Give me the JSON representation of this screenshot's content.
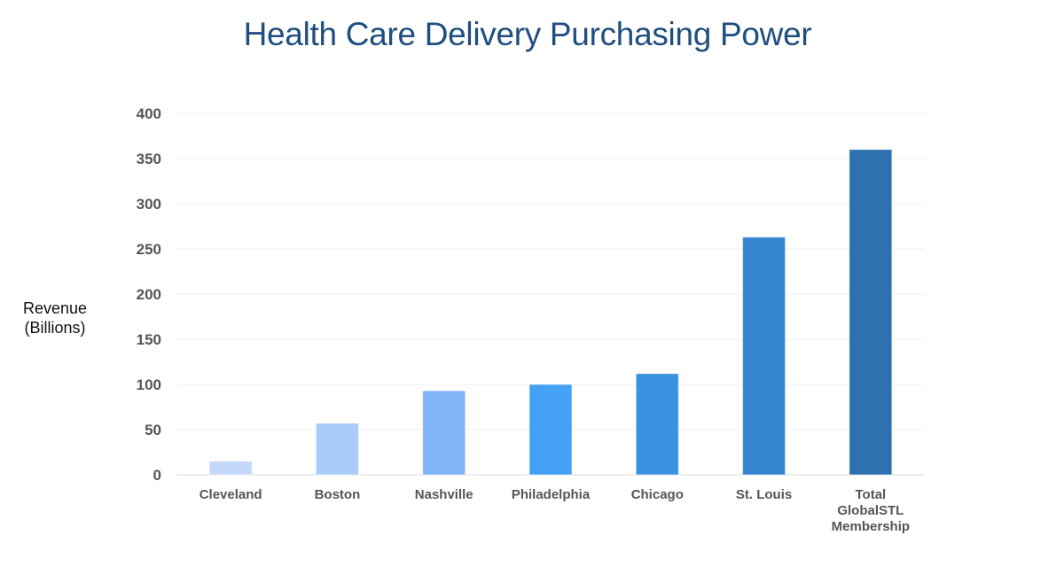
{
  "chart_data": {
    "type": "bar",
    "title": "Health Care Delivery Purchasing Power",
    "xlabel": "",
    "ylabel": [
      "Revenue",
      "(Billions)"
    ],
    "ylim": [
      0,
      400
    ],
    "yticks": [
      0,
      50,
      100,
      150,
      200,
      250,
      300,
      350,
      400
    ],
    "grid": true,
    "legend": "none",
    "categories": [
      [
        "Cleveland"
      ],
      [
        "Boston"
      ],
      [
        "Nashville"
      ],
      [
        "Philadelphia"
      ],
      [
        "Chicago"
      ],
      [
        "St. Louis"
      ],
      [
        "Total",
        "GlobalSTL",
        "Membership"
      ]
    ],
    "values": [
      15,
      57,
      93,
      100,
      112,
      263,
      360
    ],
    "colors": [
      "#c3d9fa",
      "#a8cbfa",
      "#80b3f7",
      "#44a1f6",
      "#3a91e0",
      "#3584d0",
      "#2e71b0"
    ]
  }
}
